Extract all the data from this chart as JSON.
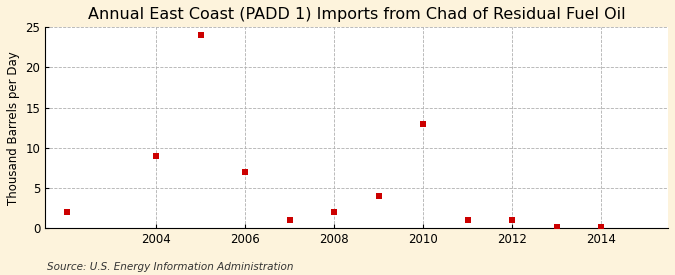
{
  "title": "Annual East Coast (PADD 1) Imports from Chad of Residual Fuel Oil",
  "ylabel": "Thousand Barrels per Day",
  "source": "Source: U.S. Energy Information Administration",
  "years": [
    2002,
    2004,
    2005,
    2006,
    2007,
    2008,
    2009,
    2010,
    2011,
    2012,
    2013,
    2014
  ],
  "values": [
    2,
    9,
    24,
    7,
    1,
    2,
    4,
    13,
    1,
    1,
    0.15,
    0.15
  ],
  "marker_color": "#cc0000",
  "marker_size": 4,
  "xlim": [
    2001.5,
    2015.5
  ],
  "ylim": [
    0,
    25
  ],
  "yticks": [
    0,
    5,
    10,
    15,
    20,
    25
  ],
  "xticks": [
    2004,
    2006,
    2008,
    2010,
    2012,
    2014
  ],
  "background_color": "#fdf3dc",
  "plot_background_color": "#ffffff",
  "grid_color": "#b0b0b0",
  "title_fontsize": 11.5,
  "label_fontsize": 8.5,
  "tick_fontsize": 8.5,
  "source_fontsize": 7.5
}
